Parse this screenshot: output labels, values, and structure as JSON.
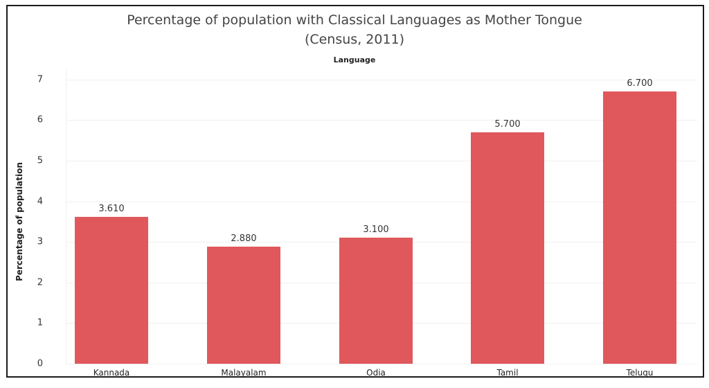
{
  "chart_data": {
    "type": "bar",
    "title": "Percentage of population with Classical Languages as Mother Tongue",
    "subtitle": "(Census, 2011)",
    "column_header": "Language",
    "xlabel": "",
    "ylabel": "Percentage of population",
    "categories": [
      "Kannada",
      "Malayalam",
      "Odia",
      "Tamil",
      "Telugu"
    ],
    "values": [
      3.61,
      2.88,
      3.1,
      5.7,
      6.7
    ],
    "value_labels": [
      "3.610",
      "2.880",
      "3.100",
      "5.700",
      "6.700"
    ],
    "yticks": [
      "0",
      "1",
      "2",
      "3",
      "4",
      "5",
      "6",
      "7"
    ],
    "ylim": [
      0,
      7.2
    ],
    "grid": true,
    "legend": null,
    "bar_color": "#E0585B"
  }
}
